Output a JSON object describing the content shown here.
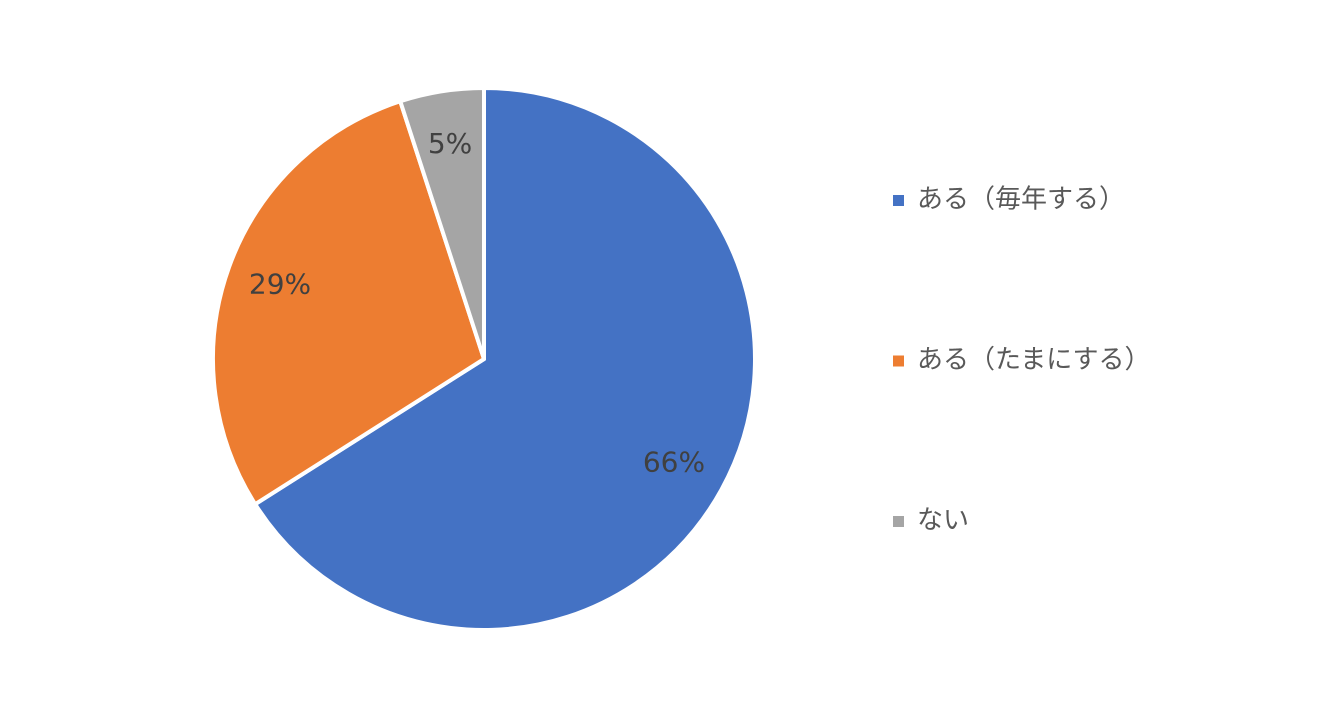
{
  "chart_data": {
    "type": "pie",
    "categories": [
      "ある（毎年する）",
      "ある（たまにする）",
      "ない"
    ],
    "values": [
      66,
      29,
      5
    ],
    "value_labels": [
      "66%",
      "29%",
      "5%"
    ],
    "colors": [
      "#4472c4",
      "#ed7d31",
      "#a5a5a5"
    ],
    "legend": "right"
  }
}
